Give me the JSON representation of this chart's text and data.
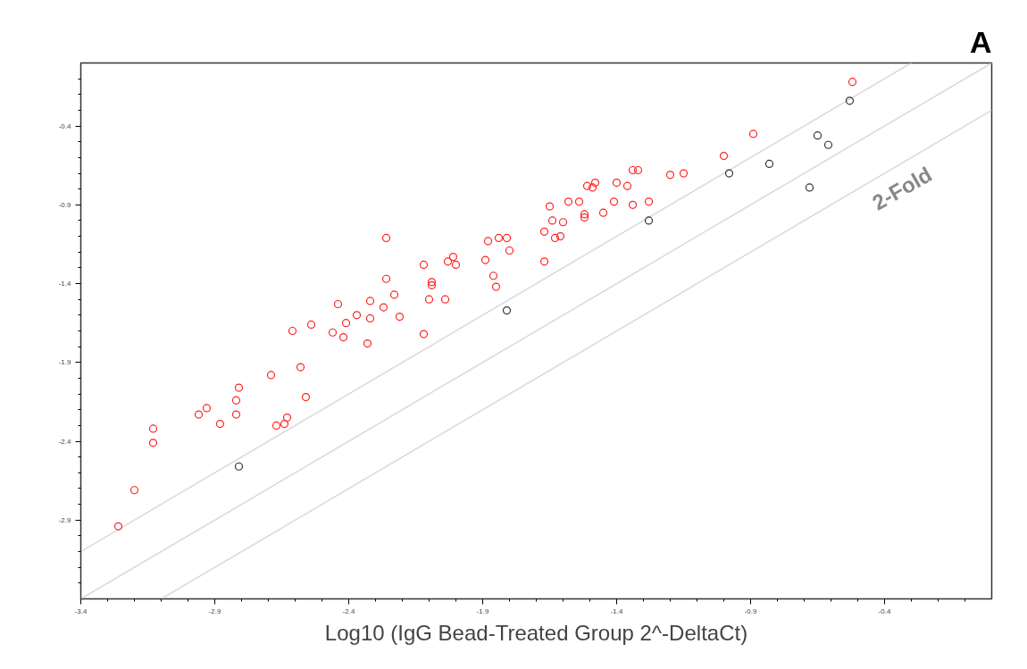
{
  "chart_data": {
    "type": "scatter",
    "xlabel": "Log10 (IgG Bead-Treated Group 2^-DeltaCt)",
    "annotations": [
      "A",
      "2-Fold"
    ],
    "grid": false,
    "xlim": [
      -3.4,
      0
    ],
    "ylim": [
      -3.4,
      0
    ],
    "xticks": [
      -3.4,
      {
        "value": -3.3,
        "label": null
      },
      {
        "value": -3.2,
        "label": null
      },
      {
        "value": -3.1,
        "label": null
      },
      {
        "value": -3.0,
        "label": null
      },
      -2.9,
      {
        "value": -2.8,
        "label": null
      },
      {
        "value": -2.7,
        "label": null
      },
      {
        "value": -2.6,
        "label": null
      },
      {
        "value": -2.5,
        "label": null
      },
      -2.4,
      {
        "value": -2.3,
        "label": null
      },
      {
        "value": -2.2,
        "label": null
      },
      {
        "value": -2.1,
        "label": null
      },
      {
        "value": -2.0,
        "label": null
      },
      -1.9,
      {
        "value": -1.8,
        "label": null
      },
      {
        "value": -1.7,
        "label": null
      },
      {
        "value": -1.6,
        "label": null
      },
      {
        "value": -1.5,
        "label": null
      },
      -1.4,
      {
        "value": -1.3,
        "label": null
      },
      {
        "value": -1.2,
        "label": null
      },
      {
        "value": -1.1,
        "label": null
      },
      {
        "value": -1.0,
        "label": null
      },
      -0.9,
      {
        "value": -0.8,
        "label": null
      },
      {
        "value": -0.7,
        "label": null
      },
      {
        "value": -0.6,
        "label": null
      },
      {
        "value": -0.5,
        "label": null
      },
      -0.4,
      {
        "value": -0.3,
        "label": null
      },
      {
        "value": -0.2,
        "label": null
      },
      {
        "value": -0.1,
        "label": null
      }
    ],
    "yticks": [
      {
        "value": -3.3,
        "label": null
      },
      {
        "value": -3.2,
        "label": null
      },
      {
        "value": -3.1,
        "label": null
      },
      {
        "value": -3.0,
        "label": null
      },
      -2.9,
      {
        "value": -2.8,
        "label": null
      },
      {
        "value": -2.7,
        "label": null
      },
      {
        "value": -2.6,
        "label": null
      },
      {
        "value": -2.5,
        "label": null
      },
      -2.4,
      {
        "value": -2.3,
        "label": null
      },
      {
        "value": -2.2,
        "label": null
      },
      {
        "value": -2.1,
        "label": null
      },
      {
        "value": -2.0,
        "label": null
      },
      -1.9,
      {
        "value": -1.8,
        "label": null
      },
      {
        "value": -1.7,
        "label": null
      },
      {
        "value": -1.6,
        "label": null
      },
      {
        "value": -1.5,
        "label": null
      },
      -1.4,
      {
        "value": -1.3,
        "label": null
      },
      {
        "value": -1.2,
        "label": null
      },
      {
        "value": -1.1,
        "label": null
      },
      {
        "value": -1.0,
        "label": null
      },
      -0.9,
      {
        "value": -0.8,
        "label": null
      },
      {
        "value": -0.7,
        "label": null
      },
      {
        "value": -0.6,
        "label": null
      },
      {
        "value": -0.5,
        "label": null
      },
      -0.4,
      {
        "value": -0.3,
        "label": null
      },
      {
        "value": -0.2,
        "label": null
      },
      {
        "value": -0.1,
        "label": null
      }
    ],
    "series": [
      {
        "type": "line",
        "marker": "none",
        "color": "#d9d9d9",
        "x": [
          -3.4,
          -0.3
        ],
        "values": [
          -3.1,
          0
        ]
      },
      {
        "type": "line",
        "marker": "none",
        "color": "#d9d9d9",
        "x": [
          -3.4,
          0
        ],
        "values": [
          -3.4,
          0
        ]
      },
      {
        "type": "line",
        "marker": "none",
        "color": "#d9d9d9",
        "x": [
          -3.1,
          0
        ],
        "values": [
          -3.4,
          -0.3
        ]
      },
      {
        "marker": "circle",
        "color": "#ff2020",
        "x": [
          -3.26,
          -3.2,
          -3.13,
          -3.13,
          -2.96,
          -2.93,
          -2.88,
          -2.82,
          -2.82,
          -2.81,
          -2.69,
          -2.67,
          -2.64,
          -2.63,
          -2.61,
          -2.58,
          -2.56,
          -2.54,
          -2.46,
          -2.44,
          -2.42,
          -2.41,
          -2.37,
          -2.33,
          -2.32,
          -2.32,
          -2.27,
          -2.26,
          -2.26,
          -2.23,
          -2.21,
          -2.12,
          -2.12,
          -2.1,
          -2.09,
          -2.09,
          -2.04,
          -2.03,
          -2.01,
          -2.0,
          -1.89,
          -1.88,
          -1.86,
          -1.85,
          -1.84,
          -1.81,
          -1.8,
          -1.67,
          -1.67,
          -1.65,
          -1.64,
          -1.63,
          -1.61,
          -1.6,
          -1.58,
          -1.54,
          -1.52,
          -1.52,
          -1.51,
          -1.49,
          -1.48,
          -1.45,
          -1.41,
          -1.4,
          -1.36,
          -1.34,
          -1.34,
          -1.32,
          -1.28,
          -1.2,
          -1.15,
          -1.0,
          -0.89,
          -0.52
        ],
        "values": [
          -2.94,
          -2.71,
          -2.32,
          -2.41,
          -2.23,
          -2.19,
          -2.29,
          -2.14,
          -2.23,
          -2.06,
          -1.98,
          -2.3,
          -2.29,
          -2.25,
          -1.7,
          -1.93,
          -2.12,
          -1.66,
          -1.71,
          -1.53,
          -1.74,
          -1.65,
          -1.6,
          -1.78,
          -1.51,
          -1.62,
          -1.55,
          -1.11,
          -1.37,
          -1.47,
          -1.61,
          -1.28,
          -1.72,
          -1.5,
          -1.39,
          -1.41,
          -1.5,
          -1.26,
          -1.23,
          -1.28,
          -1.25,
          -1.13,
          -1.35,
          -1.42,
          -1.11,
          -1.11,
          -1.19,
          -1.26,
          -1.07,
          -0.91,
          -1.0,
          -1.11,
          -1.1,
          -1.01,
          -0.88,
          -0.88,
          -0.96,
          -0.98,
          -0.78,
          -0.79,
          -0.76,
          -0.95,
          -0.88,
          -0.76,
          -0.78,
          -0.9,
          -0.68,
          -0.68,
          -0.88,
          -0.71,
          -0.7,
          -0.59,
          -0.45,
          -0.12
        ]
      },
      {
        "marker": "circle",
        "color": "#303030",
        "x": [
          -2.81,
          -1.81,
          -1.28,
          -0.98,
          -0.83,
          -0.68,
          -0.65,
          -0.61,
          -0.53
        ],
        "values": [
          -2.56,
          -1.57,
          -1.0,
          -0.7,
          -0.64,
          -0.79,
          -0.46,
          -0.52,
          -0.24
        ]
      }
    ]
  }
}
